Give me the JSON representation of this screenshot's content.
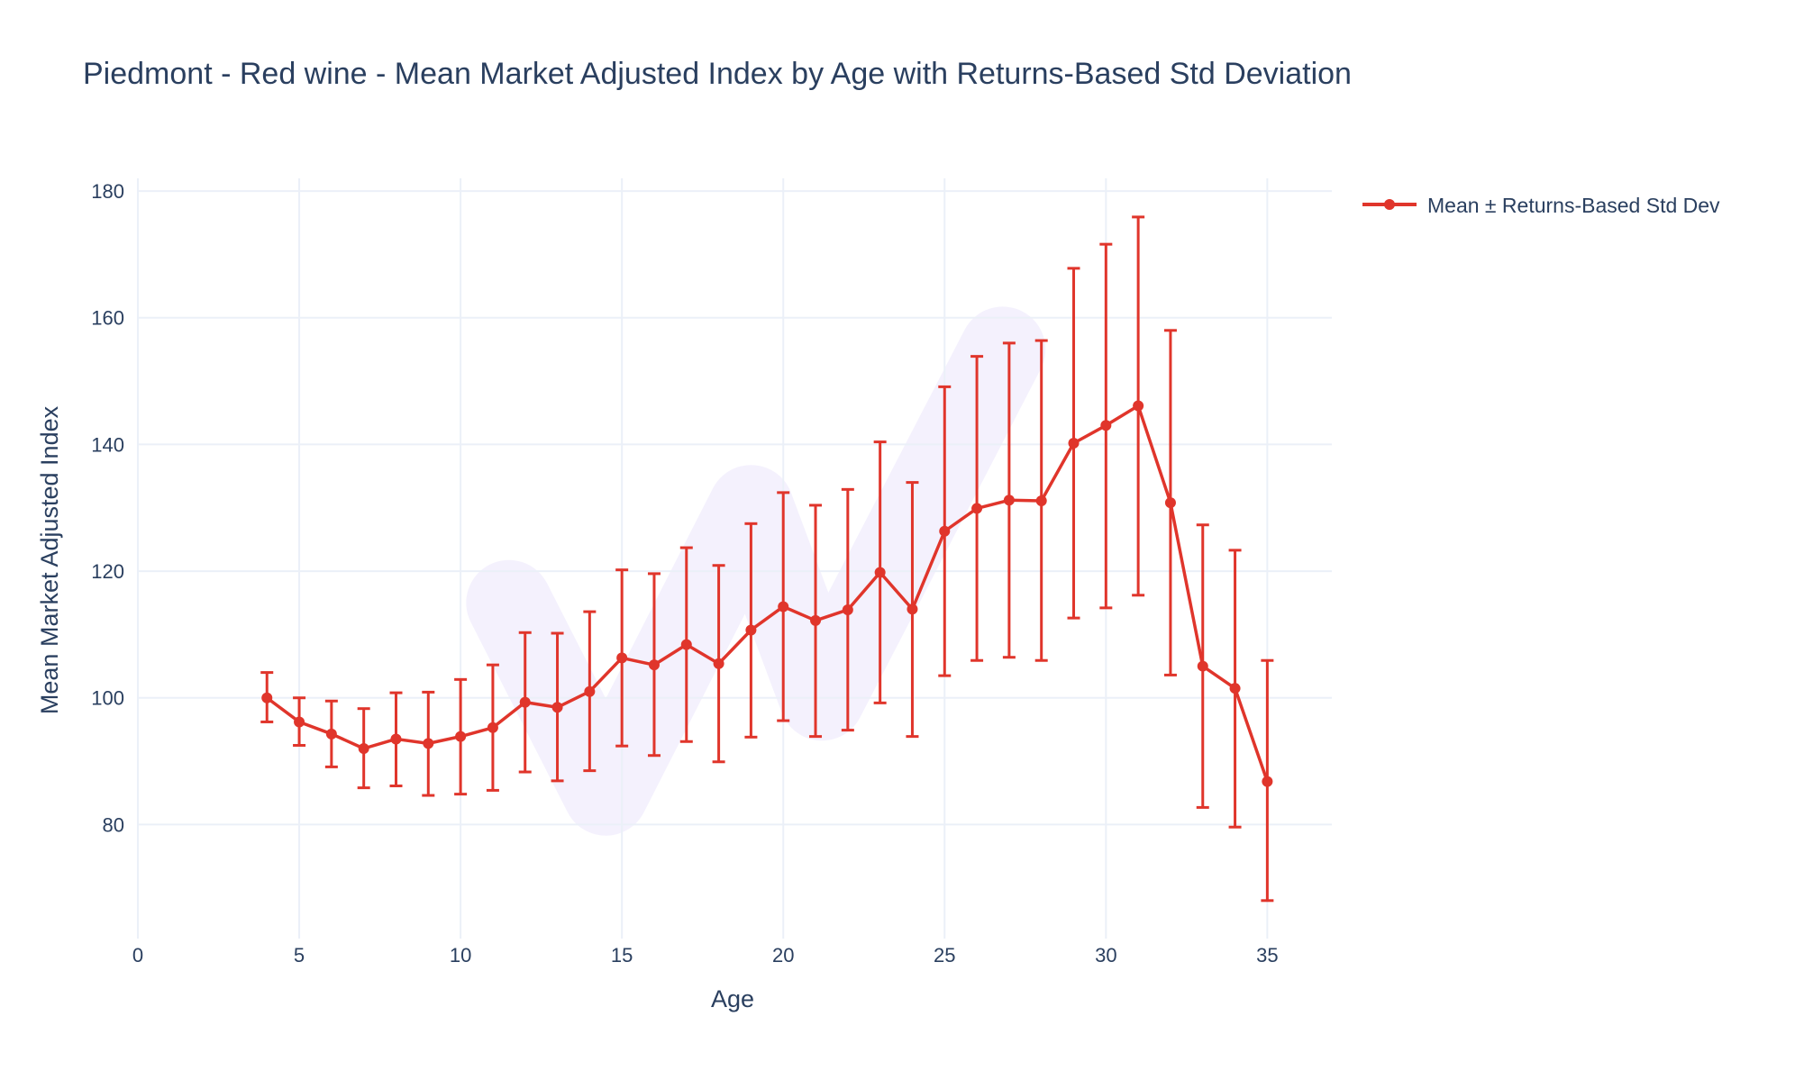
{
  "chart_data": {
    "type": "line",
    "title": "Piedmont - Red wine - Mean Market Adjusted Index by Age with Returns-Based Std Deviation",
    "xlabel": "Age",
    "ylabel": "Mean Market Adjusted Index",
    "xlim": [
      0,
      37
    ],
    "ylim": [
      62,
      182
    ],
    "x_ticks": [
      0,
      5,
      10,
      15,
      20,
      25,
      30,
      35
    ],
    "y_ticks": [
      80,
      100,
      120,
      140,
      160,
      180
    ],
    "grid": true,
    "legend_position": "top-right",
    "colors": {
      "series": "#e0352b",
      "grid": "#ebf0f8",
      "text": "#2a3f5f",
      "watermark": "#ece7fb"
    },
    "series": [
      {
        "name": "Mean ± Returns-Based Std Dev",
        "x": [
          4,
          5,
          6,
          7,
          8,
          9,
          10,
          11,
          12,
          13,
          14,
          15,
          16,
          17,
          18,
          19,
          20,
          21,
          22,
          23,
          24,
          25,
          26,
          27,
          28,
          29,
          30,
          31,
          32,
          33,
          34,
          35
        ],
        "y": [
          100.0,
          96.2,
          94.3,
          92.0,
          93.5,
          92.8,
          93.9,
          95.3,
          99.3,
          98.5,
          101.0,
          106.3,
          105.2,
          108.4,
          105.4,
          110.7,
          114.4,
          112.2,
          113.9,
          119.8,
          114.0,
          126.3,
          129.9,
          131.2,
          131.1,
          140.2,
          143.0,
          146.1,
          130.8,
          105.0,
          101.5,
          86.8
        ],
        "upper": [
          104.0,
          100.0,
          99.5,
          98.3,
          100.8,
          100.9,
          102.9,
          105.2,
          110.3,
          110.2,
          113.6,
          120.2,
          119.6,
          123.7,
          120.9,
          127.5,
          132.4,
          130.4,
          132.9,
          140.4,
          134.0,
          149.1,
          153.9,
          156.0,
          156.4,
          167.8,
          171.6,
          175.9,
          158.0,
          127.3,
          123.3,
          105.9
        ],
        "lower": [
          96.2,
          92.5,
          89.1,
          85.8,
          86.1,
          84.6,
          84.8,
          85.4,
          88.3,
          86.9,
          88.5,
          92.4,
          90.9,
          93.1,
          89.9,
          93.8,
          96.4,
          93.9,
          94.9,
          99.2,
          93.9,
          103.5,
          105.9,
          106.4,
          105.9,
          112.6,
          114.2,
          116.2,
          103.6,
          82.7,
          79.6,
          68.0
        ]
      }
    ]
  }
}
